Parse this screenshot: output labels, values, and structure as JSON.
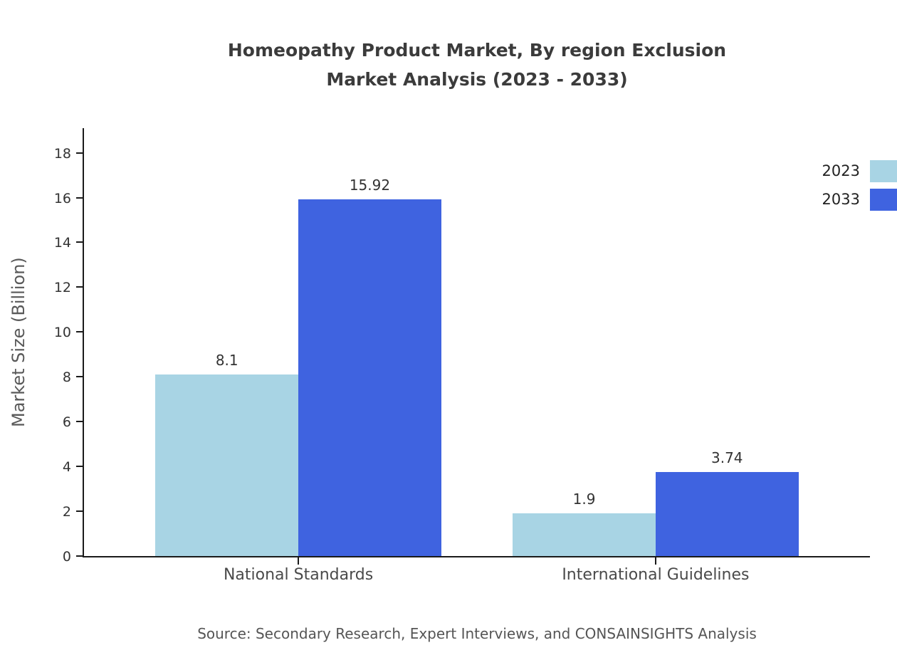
{
  "titles": {
    "line1": "Homeopathy Product Market, By region Exclusion",
    "line2": "Market Analysis (2023 - 2033)"
  },
  "chart_data": {
    "type": "bar",
    "title": "Homeopathy Product Market, By region Exclusion Market Analysis (2023 - 2033)",
    "categories": [
      "National Standards",
      "International Guidelines"
    ],
    "series": [
      {
        "name": "2023",
        "color": "#A8D4E4",
        "values": [
          8.1,
          1.9
        ]
      },
      {
        "name": "2033",
        "color": "#3F63E0",
        "values": [
          15.92,
          3.74
        ]
      }
    ],
    "xlabel": "",
    "ylabel": "Market Size (Billion)",
    "yticks": [
      0,
      2,
      4,
      6,
      8,
      10,
      12,
      14,
      16,
      18
    ],
    "ylim": [
      0,
      19.1
    ],
    "grid": false,
    "legend_position": "top-right",
    "value_labels": true
  },
  "source": "Source: Secondary Research, Expert Interviews, and CONSAINSIGHTS Analysis"
}
